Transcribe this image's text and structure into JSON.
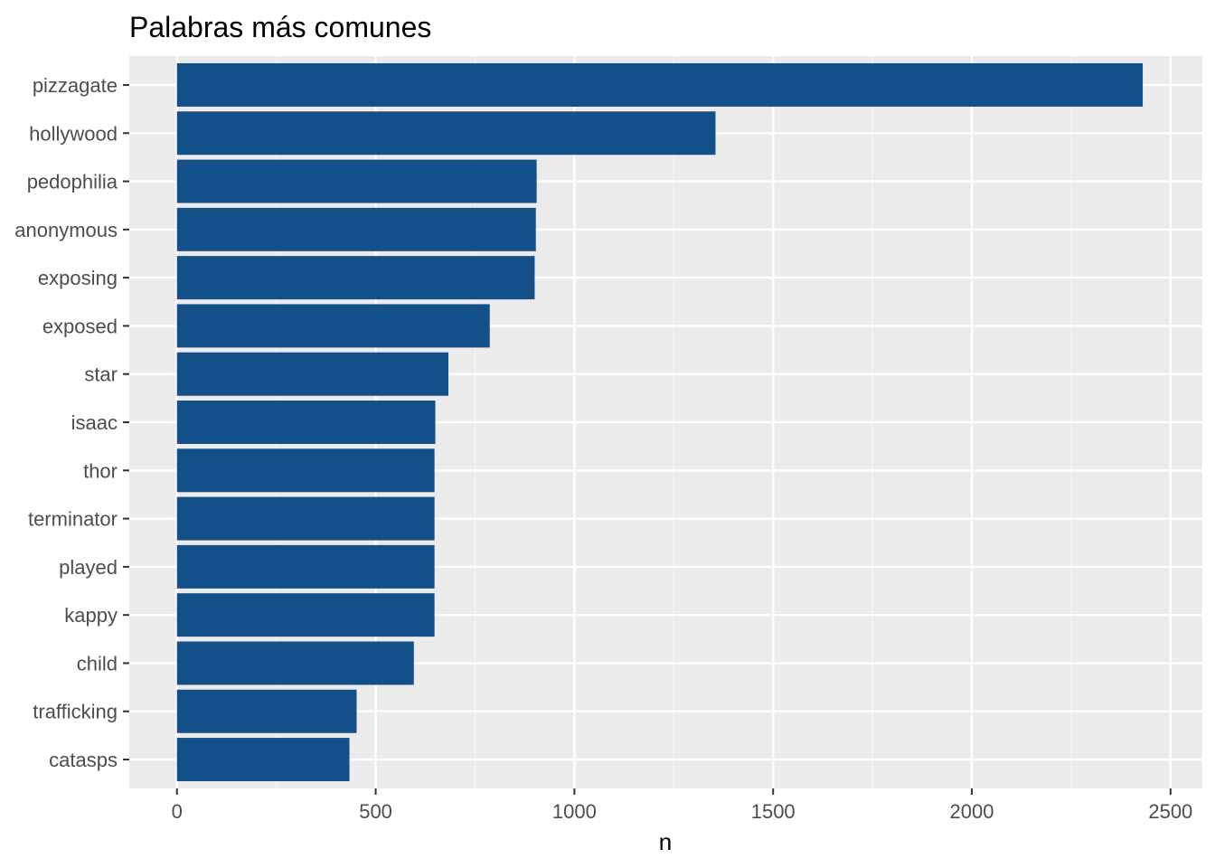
{
  "chart_data": {
    "type": "bar",
    "orientation": "horizontal",
    "title": "Palabras más comunes",
    "xlabel": "n",
    "ylabel": "",
    "categories": [
      "pizzagate",
      "hollywood",
      "pedophilia",
      "anonymous",
      "exposing",
      "exposed",
      "star",
      "isaac",
      "thor",
      "terminator",
      "played",
      "kappy",
      "child",
      "trafficking",
      "catasps"
    ],
    "values": [
      2430,
      1355,
      905,
      903,
      900,
      787,
      683,
      650,
      648,
      648,
      648,
      648,
      596,
      452,
      434
    ],
    "xlim": [
      -120,
      2580
    ],
    "xticks": [
      0,
      500,
      1000,
      1500,
      2000,
      2500
    ],
    "xtick_labels": [
      "0",
      "500",
      "1000",
      "1500",
      "2000",
      "2500"
    ],
    "grid": true,
    "legend": "none",
    "colors": {
      "bar": "#134f89",
      "panel_background": "#ebebeb",
      "grid_major": "#ffffff",
      "grid_minor": "#f5f5f5",
      "tick_label": "#4d4d4d",
      "tick_mark": "#333333",
      "title": "#000000"
    }
  }
}
